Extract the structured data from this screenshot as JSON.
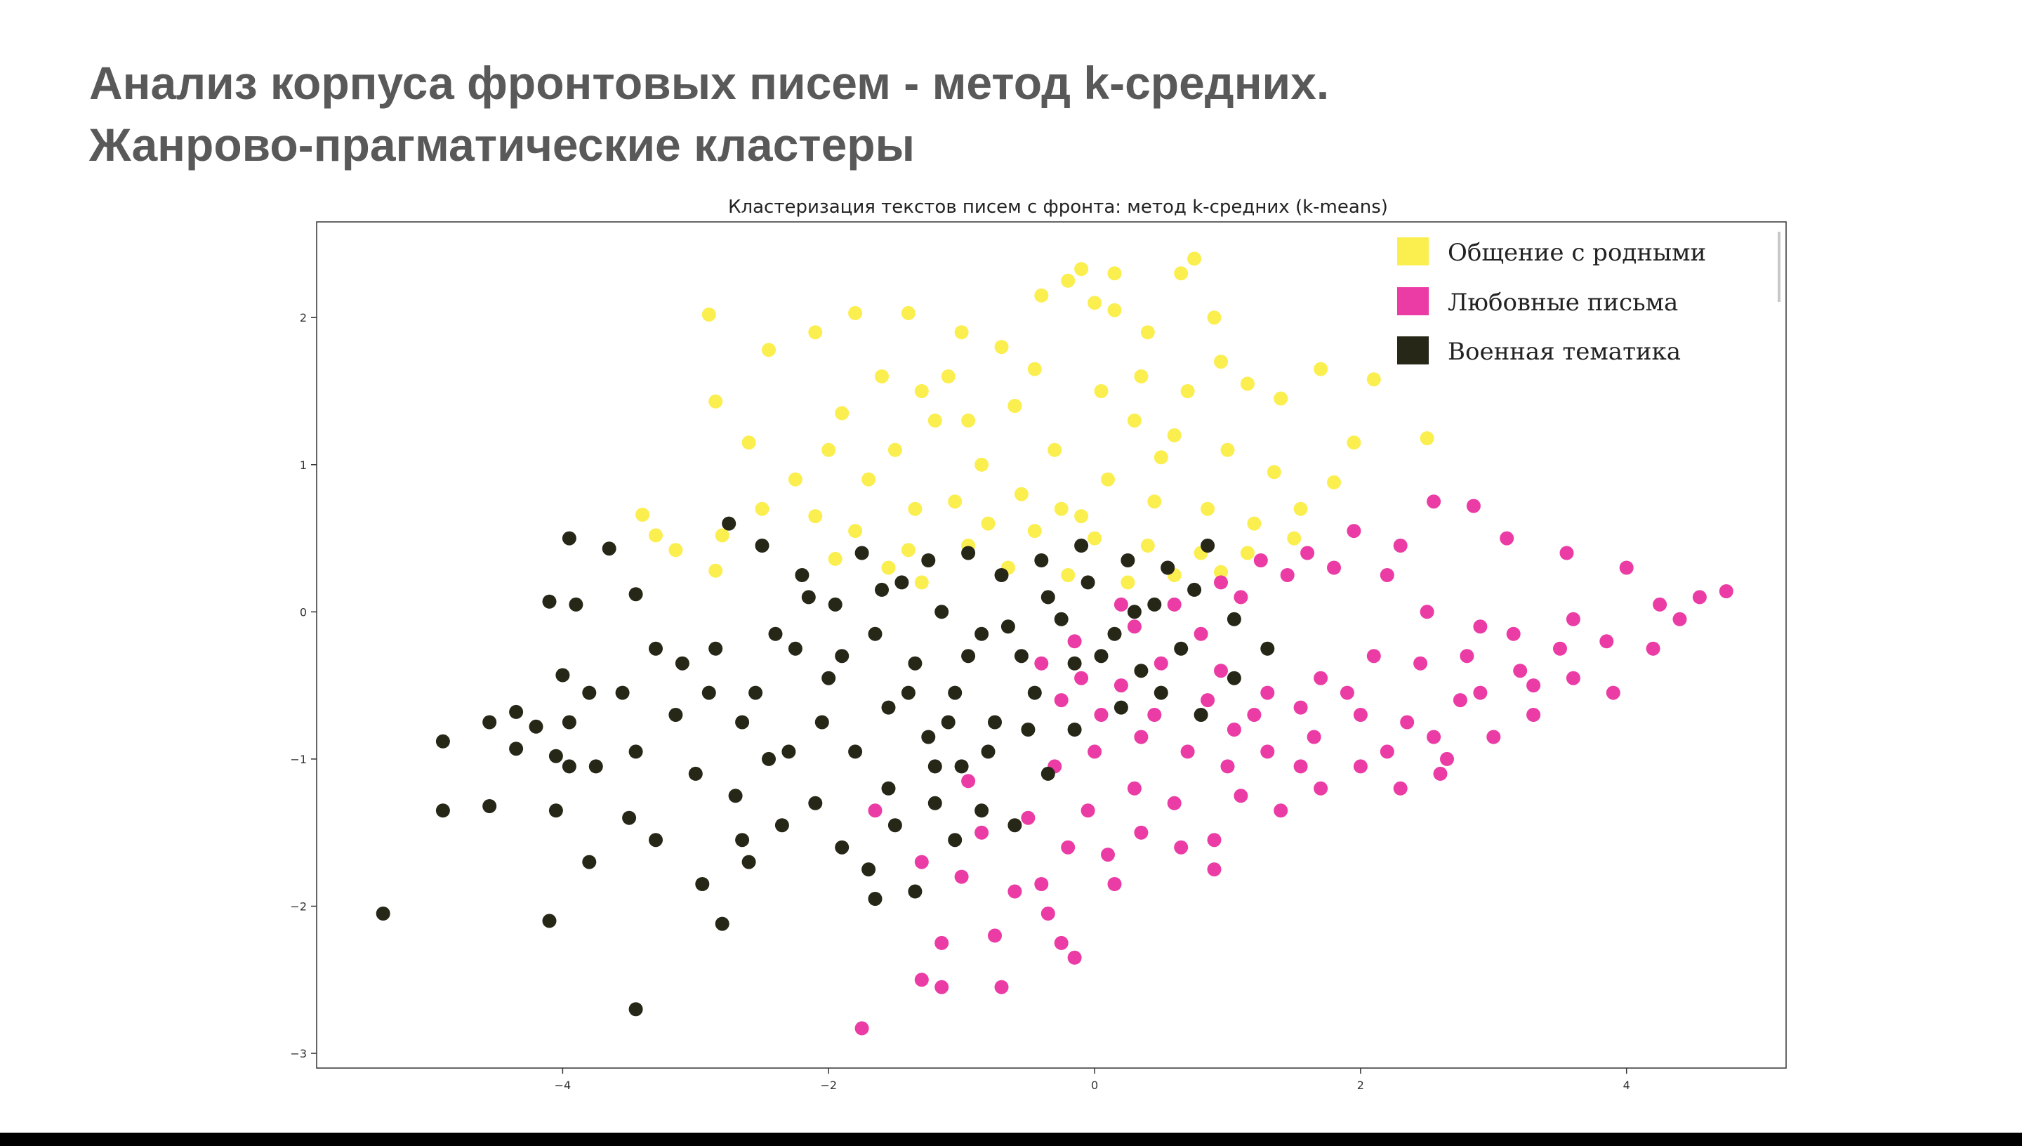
{
  "slide": {
    "title_line1": "Анализ корпуса фронтовых писем - метод k-средних.",
    "title_line2": "Жанрово-прагматические кластеры"
  },
  "chart_data": {
    "type": "scatter",
    "title": "Кластеризация текстов писем с фронта: метод k-средних (k-means)",
    "xlabel": "",
    "ylabel": "",
    "xlim": [
      -5.85,
      5.2
    ],
    "ylim": [
      -3.1,
      2.65
    ],
    "x_ticks": [
      -4,
      -2,
      0,
      2,
      4
    ],
    "y_ticks": [
      -3,
      -2,
      -1,
      0,
      1,
      2
    ],
    "x_tick_labels": [
      "−4",
      "−2",
      "0",
      "2",
      "4"
    ],
    "y_tick_labels": [
      "−3",
      "−2",
      "−1",
      "0",
      "1",
      "2"
    ],
    "grid": false,
    "legend_position": "top-right",
    "series": [
      {
        "name": "Общение с родными",
        "color": "#FBEE4F",
        "points": [
          [
            -2.9,
            2.02
          ],
          [
            -2.45,
            1.78
          ],
          [
            -2.1,
            1.9
          ],
          [
            -1.8,
            2.03
          ],
          [
            -1.4,
            2.03
          ],
          [
            -1.6,
            1.6
          ],
          [
            -1.3,
            1.5
          ],
          [
            -1.0,
            1.9
          ],
          [
            -0.7,
            1.8
          ],
          [
            -0.4,
            2.15
          ],
          [
            -0.2,
            2.25
          ],
          [
            -0.1,
            2.33
          ],
          [
            0.0,
            2.1
          ],
          [
            0.15,
            2.05
          ],
          [
            0.15,
            2.3
          ],
          [
            0.4,
            1.9
          ],
          [
            0.65,
            2.3
          ],
          [
            0.75,
            2.4
          ],
          [
            0.9,
            2.0
          ],
          [
            0.95,
            1.7
          ],
          [
            1.15,
            1.55
          ],
          [
            1.4,
            1.45
          ],
          [
            1.7,
            1.65
          ],
          [
            2.1,
            1.58
          ],
          [
            2.5,
            1.18
          ],
          [
            1.95,
            1.15
          ],
          [
            1.8,
            0.88
          ],
          [
            -2.85,
            1.43
          ],
          [
            -2.25,
            0.9
          ],
          [
            -2.0,
            1.1
          ],
          [
            -1.7,
            0.9
          ],
          [
            -1.5,
            1.1
          ],
          [
            -1.2,
            1.3
          ],
          [
            -0.95,
            1.3
          ],
          [
            -0.6,
            1.4
          ],
          [
            -0.3,
            1.1
          ],
          [
            0.05,
            1.5
          ],
          [
            0.3,
            1.3
          ],
          [
            0.6,
            1.2
          ],
          [
            1.0,
            1.1
          ],
          [
            1.35,
            0.95
          ],
          [
            1.55,
            0.7
          ],
          [
            1.2,
            0.6
          ],
          [
            0.85,
            0.7
          ],
          [
            0.45,
            0.75
          ],
          [
            0.1,
            0.9
          ],
          [
            -0.25,
            0.7
          ],
          [
            -0.55,
            0.8
          ],
          [
            -0.85,
            1.0
          ],
          [
            -1.05,
            0.75
          ],
          [
            -1.35,
            0.7
          ],
          [
            -1.8,
            0.55
          ],
          [
            -2.1,
            0.65
          ],
          [
            -2.5,
            0.7
          ],
          [
            -2.8,
            0.52
          ],
          [
            -3.3,
            0.52
          ],
          [
            -3.4,
            0.66
          ],
          [
            -3.15,
            0.42
          ],
          [
            -2.85,
            0.28
          ],
          [
            -1.95,
            0.36
          ],
          [
            -1.4,
            0.42
          ],
          [
            -0.95,
            0.45
          ],
          [
            -0.45,
            0.55
          ],
          [
            0.0,
            0.5
          ],
          [
            0.4,
            0.45
          ],
          [
            0.8,
            0.4
          ],
          [
            1.15,
            0.4
          ],
          [
            1.5,
            0.5
          ],
          [
            -0.2,
            0.25
          ],
          [
            0.25,
            0.2
          ],
          [
            -0.65,
            0.3
          ],
          [
            0.6,
            0.25
          ],
          [
            -1.3,
            0.2
          ],
          [
            0.95,
            0.27
          ],
          [
            -2.6,
            1.15
          ],
          [
            -1.1,
            1.6
          ],
          [
            -0.45,
            1.65
          ],
          [
            0.35,
            1.6
          ],
          [
            0.7,
            1.5
          ],
          [
            -1.9,
            1.35
          ],
          [
            -0.8,
            0.6
          ],
          [
            -0.1,
            0.65
          ],
          [
            0.5,
            1.05
          ],
          [
            -1.55,
            0.3
          ]
        ]
      },
      {
        "name": "Любовные письма",
        "color": "#EB3BA5",
        "points": [
          [
            2.55,
            0.75
          ],
          [
            2.85,
            0.72
          ],
          [
            3.1,
            0.5
          ],
          [
            3.55,
            0.4
          ],
          [
            4.0,
            0.3
          ],
          [
            4.55,
            0.1
          ],
          [
            4.75,
            0.14
          ],
          [
            4.4,
            -0.05
          ],
          [
            4.2,
            -0.25
          ],
          [
            3.9,
            -0.55
          ],
          [
            3.6,
            -0.45
          ],
          [
            3.3,
            -0.7
          ],
          [
            3.0,
            -0.85
          ],
          [
            2.6,
            -1.1
          ],
          [
            2.3,
            -1.2
          ],
          [
            2.0,
            -1.05
          ],
          [
            1.7,
            -1.2
          ],
          [
            1.4,
            -1.35
          ],
          [
            1.1,
            -1.25
          ],
          [
            0.9,
            -1.55
          ],
          [
            0.65,
            -1.6
          ],
          [
            0.35,
            -1.5
          ],
          [
            0.1,
            -1.65
          ],
          [
            -0.2,
            -1.6
          ],
          [
            -0.6,
            -1.9
          ],
          [
            -0.35,
            -2.05
          ],
          [
            -0.75,
            -2.2
          ],
          [
            -0.7,
            -2.55
          ],
          [
            -1.15,
            -2.25
          ],
          [
            -1.15,
            -2.55
          ],
          [
            -1.3,
            -2.5
          ],
          [
            -0.15,
            -2.35
          ],
          [
            -0.25,
            -2.25
          ],
          [
            -1.75,
            -2.83
          ],
          [
            -0.4,
            -1.85
          ],
          [
            -1.0,
            -1.8
          ],
          [
            -1.3,
            -1.7
          ],
          [
            -1.65,
            -1.35
          ],
          [
            -0.95,
            -1.15
          ],
          [
            -0.5,
            -1.4
          ],
          [
            -0.3,
            -1.05
          ],
          [
            0.0,
            -0.95
          ],
          [
            0.35,
            -0.85
          ],
          [
            0.7,
            -0.95
          ],
          [
            1.05,
            -0.8
          ],
          [
            1.3,
            -0.95
          ],
          [
            1.65,
            -0.85
          ],
          [
            2.0,
            -0.7
          ],
          [
            2.35,
            -0.75
          ],
          [
            2.75,
            -0.6
          ],
          [
            3.2,
            -0.4
          ],
          [
            3.5,
            -0.25
          ],
          [
            2.9,
            -0.1
          ],
          [
            2.5,
            0.0
          ],
          [
            2.2,
            0.25
          ],
          [
            1.8,
            0.3
          ],
          [
            1.45,
            0.25
          ],
          [
            1.1,
            0.1
          ],
          [
            0.8,
            -0.15
          ],
          [
            0.5,
            -0.35
          ],
          [
            0.2,
            -0.5
          ],
          [
            -0.1,
            -0.45
          ],
          [
            -0.4,
            -0.35
          ],
          [
            -0.15,
            -0.2
          ],
          [
            0.3,
            -0.1
          ],
          [
            0.6,
            0.05
          ],
          [
            0.95,
            -0.4
          ],
          [
            1.3,
            -0.55
          ],
          [
            1.7,
            -0.45
          ],
          [
            2.1,
            -0.3
          ],
          [
            2.45,
            -0.35
          ],
          [
            2.8,
            -0.3
          ],
          [
            3.15,
            -0.15
          ],
          [
            3.6,
            -0.05
          ],
          [
            3.85,
            -0.2
          ],
          [
            4.25,
            0.05
          ],
          [
            2.3,
            0.45
          ],
          [
            1.95,
            0.55
          ],
          [
            1.6,
            0.4
          ],
          [
            1.25,
            0.35
          ],
          [
            0.95,
            0.2
          ],
          [
            0.55,
            0.3
          ],
          [
            0.2,
            0.05
          ],
          [
            -0.25,
            -0.6
          ],
          [
            0.05,
            -0.7
          ],
          [
            0.45,
            -0.7
          ],
          [
            0.85,
            -0.6
          ],
          [
            1.2,
            -0.7
          ],
          [
            1.55,
            -0.65
          ],
          [
            1.9,
            -0.55
          ],
          [
            2.2,
            -0.95
          ],
          [
            2.55,
            -0.85
          ],
          [
            2.9,
            -0.55
          ],
          [
            3.3,
            -0.5
          ],
          [
            0.6,
            -1.3
          ],
          [
            0.3,
            -1.2
          ],
          [
            -0.05,
            -1.35
          ],
          [
            1.0,
            -1.05
          ],
          [
            1.55,
            -1.05
          ],
          [
            2.65,
            -1.0
          ],
          [
            -0.85,
            -1.5
          ],
          [
            0.15,
            -1.85
          ],
          [
            0.9,
            -1.75
          ]
        ]
      },
      {
        "name": "Военная тематика",
        "color": "#272718",
        "points": [
          [
            -5.35,
            -2.05
          ],
          [
            -4.9,
            -1.35
          ],
          [
            -4.9,
            -0.88
          ],
          [
            -4.55,
            -0.75
          ],
          [
            -4.55,
            -1.32
          ],
          [
            -4.35,
            -0.93
          ],
          [
            -4.2,
            -0.78
          ],
          [
            -4.1,
            -2.1
          ],
          [
            -4.05,
            -1.35
          ],
          [
            -4.05,
            -0.98
          ],
          [
            -3.95,
            -1.05
          ],
          [
            -3.95,
            -0.75
          ],
          [
            -3.8,
            -1.7
          ],
          [
            -3.75,
            -1.05
          ],
          [
            -3.9,
            0.05
          ],
          [
            -4.1,
            0.07
          ],
          [
            -3.95,
            0.5
          ],
          [
            -3.65,
            0.43
          ],
          [
            -3.45,
            0.12
          ],
          [
            -3.45,
            -2.7
          ],
          [
            -2.8,
            -2.12
          ],
          [
            -2.95,
            -1.85
          ],
          [
            -3.3,
            -1.55
          ],
          [
            -3.5,
            -1.4
          ],
          [
            -3.55,
            -0.55
          ],
          [
            -3.8,
            -0.55
          ],
          [
            -4.0,
            -0.43
          ],
          [
            -3.3,
            -0.25
          ],
          [
            -3.1,
            -0.35
          ],
          [
            -2.9,
            -0.55
          ],
          [
            -2.65,
            -0.75
          ],
          [
            -2.45,
            -1.0
          ],
          [
            -2.6,
            -1.7
          ],
          [
            -2.35,
            -1.45
          ],
          [
            -2.1,
            -1.3
          ],
          [
            -1.9,
            -1.6
          ],
          [
            -1.7,
            -1.75
          ],
          [
            -1.5,
            -1.45
          ],
          [
            -1.2,
            -1.3
          ],
          [
            -1.0,
            -1.05
          ],
          [
            -0.85,
            -1.35
          ],
          [
            -0.6,
            -1.45
          ],
          [
            -0.35,
            -1.1
          ],
          [
            -0.15,
            -0.8
          ],
          [
            0.2,
            -0.65
          ],
          [
            0.5,
            -0.55
          ],
          [
            0.8,
            -0.7
          ],
          [
            1.05,
            -0.45
          ],
          [
            1.3,
            -0.25
          ],
          [
            1.05,
            -0.05
          ],
          [
            0.75,
            0.15
          ],
          [
            0.45,
            0.05
          ],
          [
            0.15,
            -0.15
          ],
          [
            -0.15,
            -0.35
          ],
          [
            -0.45,
            -0.55
          ],
          [
            -0.75,
            -0.75
          ],
          [
            -1.05,
            -0.55
          ],
          [
            -1.35,
            -0.35
          ],
          [
            -1.65,
            -0.15
          ],
          [
            -1.95,
            0.05
          ],
          [
            -2.2,
            0.25
          ],
          [
            -2.5,
            0.45
          ],
          [
            -2.75,
            0.6
          ],
          [
            -2.25,
            -0.25
          ],
          [
            -2.55,
            -0.55
          ],
          [
            -2.05,
            -0.75
          ],
          [
            -1.8,
            -0.95
          ],
          [
            -1.55,
            -0.65
          ],
          [
            -1.25,
            -0.85
          ],
          [
            -0.95,
            -0.3
          ],
          [
            -0.65,
            -0.1
          ],
          [
            -0.35,
            0.1
          ],
          [
            -0.05,
            0.2
          ],
          [
            0.25,
            0.35
          ],
          [
            0.55,
            0.3
          ],
          [
            0.85,
            0.45
          ],
          [
            -1.75,
            0.4
          ],
          [
            -1.45,
            0.2
          ],
          [
            -1.15,
            0.0
          ],
          [
            -0.85,
            -0.15
          ],
          [
            -0.55,
            -0.3
          ],
          [
            -0.25,
            -0.05
          ],
          [
            0.05,
            -0.3
          ],
          [
            0.35,
            -0.4
          ],
          [
            0.65,
            -0.25
          ],
          [
            -2.0,
            -0.45
          ],
          [
            -2.85,
            -0.25
          ],
          [
            -3.15,
            -0.7
          ],
          [
            -3.0,
            -1.1
          ],
          [
            -2.7,
            -1.25
          ],
          [
            -1.35,
            -1.9
          ],
          [
            -1.65,
            -1.95
          ],
          [
            -1.05,
            -1.55
          ],
          [
            -1.9,
            -0.3
          ],
          [
            -1.4,
            -0.55
          ],
          [
            -1.1,
            -0.75
          ],
          [
            -0.8,
            -0.95
          ],
          [
            -0.5,
            -0.8
          ],
          [
            -2.4,
            -0.15
          ],
          [
            -2.15,
            0.1
          ],
          [
            -1.6,
            0.15
          ],
          [
            -1.25,
            0.35
          ],
          [
            -0.95,
            0.4
          ],
          [
            -0.7,
            0.25
          ],
          [
            -0.4,
            0.35
          ],
          [
            -0.1,
            0.45
          ],
          [
            0.3,
            0.0
          ],
          [
            -1.55,
            -1.2
          ],
          [
            -1.2,
            -1.05
          ],
          [
            -2.3,
            -0.95
          ],
          [
            -3.45,
            -0.95
          ],
          [
            -4.35,
            -0.68
          ],
          [
            -2.65,
            -1.55
          ]
        ]
      }
    ]
  }
}
